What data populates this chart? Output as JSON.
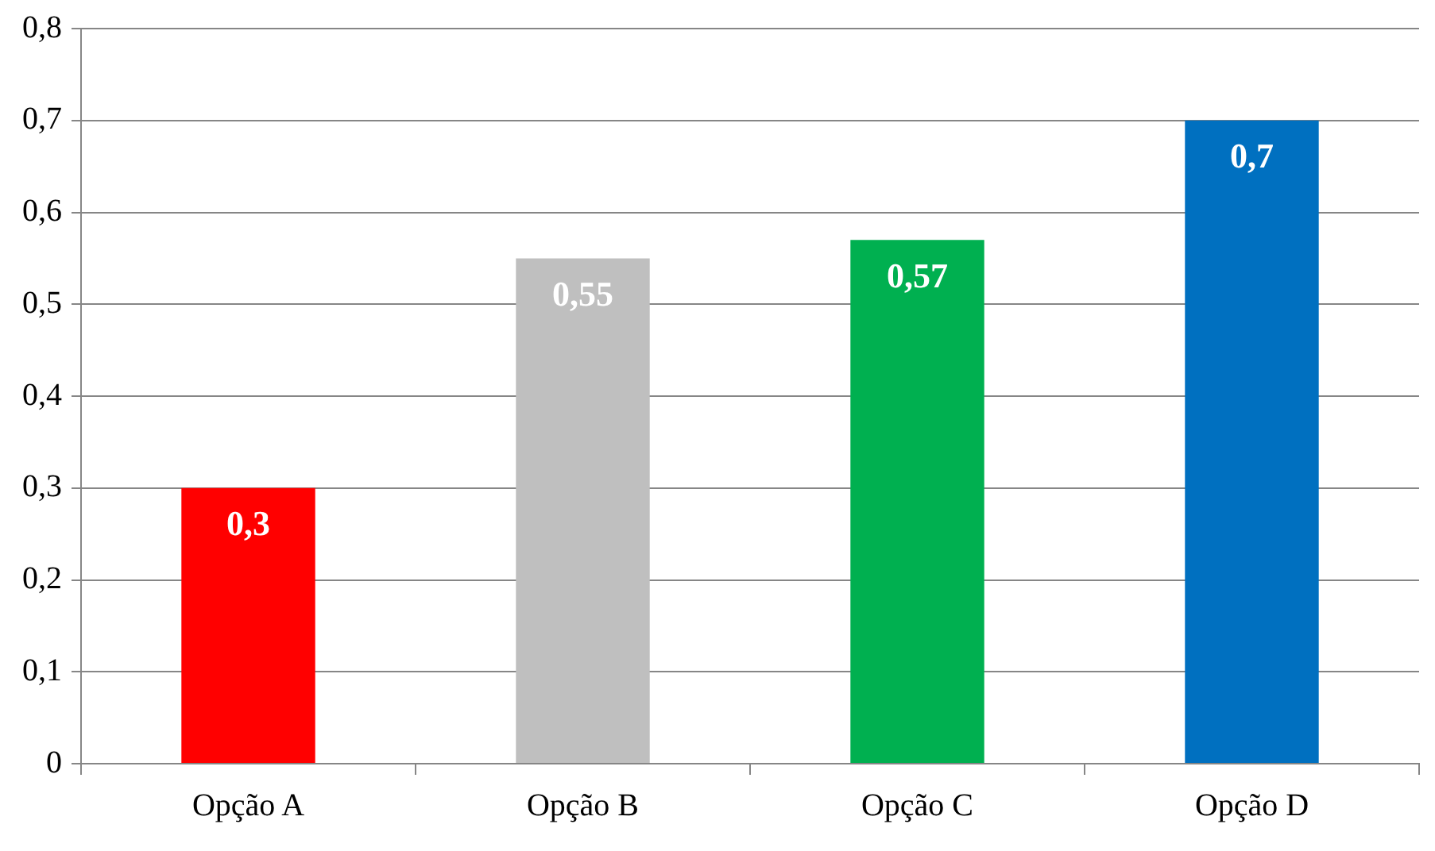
{
  "chart_data": {
    "type": "bar",
    "categories": [
      "Opção A",
      "Opção B",
      "Opção C",
      "Opção D"
    ],
    "values": [
      0.3,
      0.55,
      0.57,
      0.7
    ],
    "colors": [
      "#ff0000",
      "#bfbfbf",
      "#00b050",
      "#0070c0"
    ],
    "value_labels": [
      "0,3",
      "0,55",
      "0,57",
      "0,7"
    ],
    "ylim": [
      0,
      0.8
    ],
    "yticks": [
      0,
      {
        "value": 0.1,
        "label": "0,1"
      },
      {
        "value": 0.2,
        "label": "0,2"
      },
      {
        "value": 0.3,
        "label": "0,3"
      },
      {
        "value": 0.4,
        "label": "0,4"
      },
      {
        "value": 0.5,
        "label": "0,5"
      },
      {
        "value": 0.6,
        "label": "0,6"
      },
      {
        "value": 0.7,
        "label": "0,7"
      },
      {
        "value": 0.8,
        "label": "0,8"
      }
    ],
    "grid": "y",
    "legend": false
  }
}
